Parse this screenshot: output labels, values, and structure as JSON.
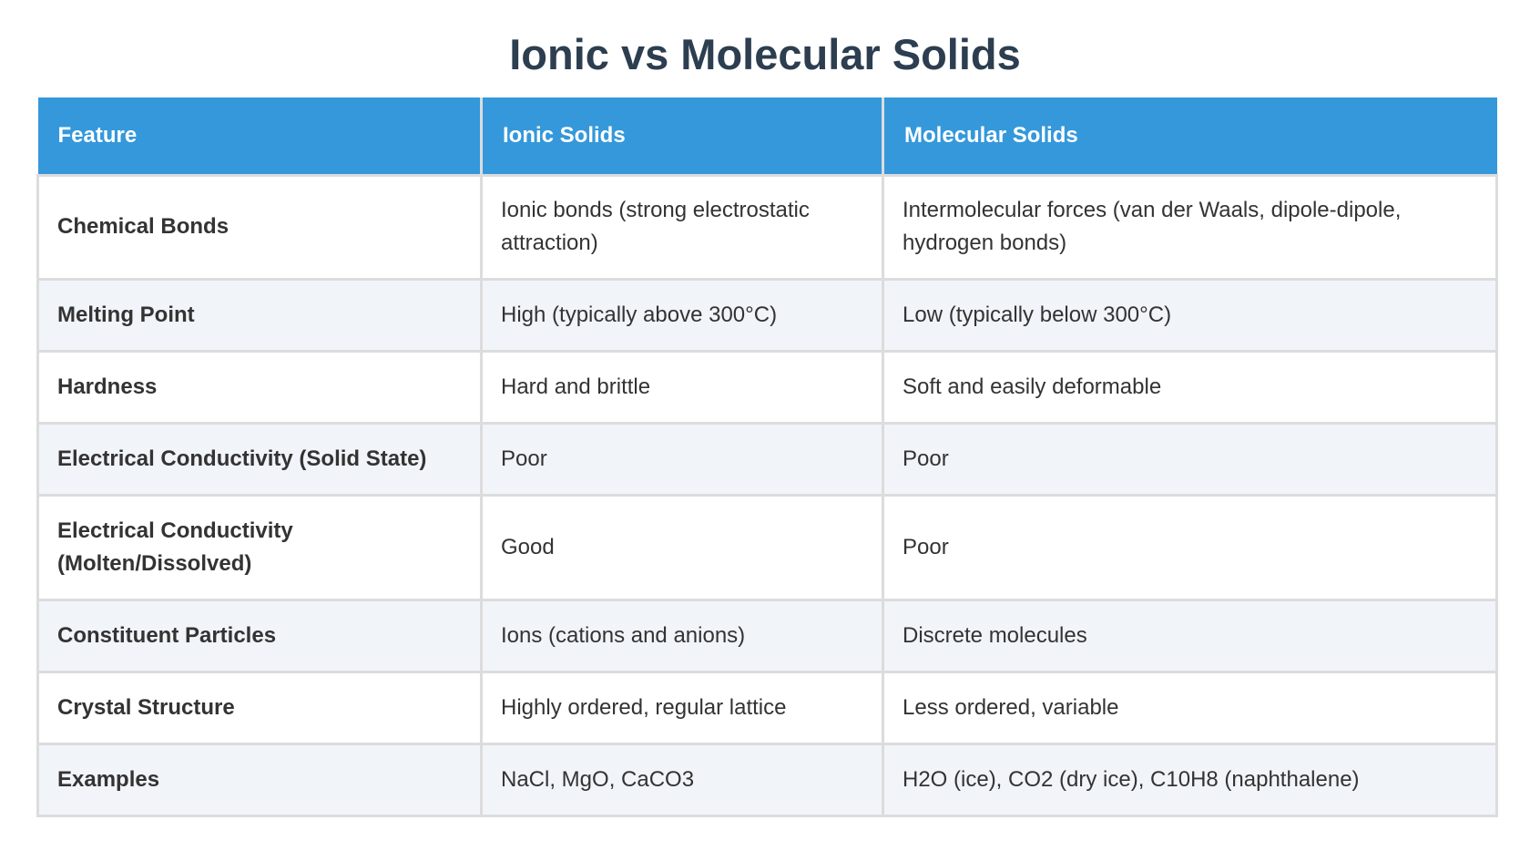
{
  "title": "Ionic vs Molecular Solids",
  "table": {
    "headers": [
      "Feature",
      "Ionic Solids",
      "Molecular Solids"
    ],
    "rows": [
      [
        "Chemical Bonds",
        "Ionic bonds (strong electrostatic attraction)",
        "Intermolecular forces (van der Waals, dipole-dipole, hydrogen bonds)"
      ],
      [
        "Melting Point",
        "High (typically above 300°C)",
        "Low (typically below 300°C)"
      ],
      [
        "Hardness",
        "Hard and brittle",
        "Soft and easily deformable"
      ],
      [
        "Electrical Conductivity (Solid State)",
        "Poor",
        "Poor"
      ],
      [
        "Electrical Conductivity (Molten/Dissolved)",
        "Good",
        "Poor"
      ],
      [
        "Constituent Particles",
        "Ions (cations and anions)",
        "Discrete molecules"
      ],
      [
        "Crystal Structure",
        "Highly ordered, regular lattice",
        "Less ordered, variable"
      ],
      [
        "Examples",
        "NaCl, MgO, CaCO3",
        "H2O (ice), CO2 (dry ice), C10H8 (naphthalene)"
      ]
    ]
  },
  "colors": {
    "title": "#2c3e50",
    "header_bg": "#3498db",
    "header_text": "#ffffff",
    "row_alt_bg": "#f1f4f9",
    "border": "#dcdcdc"
  }
}
